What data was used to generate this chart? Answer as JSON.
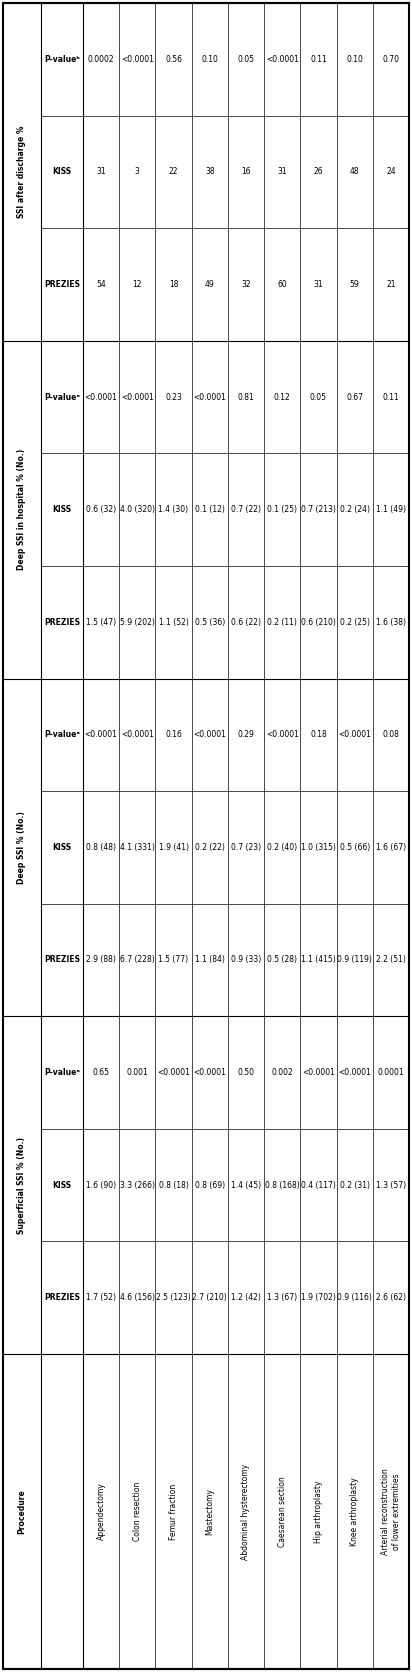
{
  "procedures": [
    "Appendectomy",
    "Colon resection",
    "Femur fraction",
    "Mastectomy",
    "Abdominal hysterectomy",
    "Caesarean section",
    "Hip arthroplasty",
    "Knee arthroplasty",
    "Arterial reconstruction\nof lower extremities"
  ],
  "col_groups": [
    "Superficial SSI % (No.)",
    "Deep SSI % (No.)",
    "Deep SSI in hospital % (No.)",
    "SSI after discharge %"
  ],
  "data": [
    [
      "1.7 (52)",
      "1.6 (90)",
      "0.65",
      "2.9 (88)",
      "0.8 (48)",
      "<0.0001",
      "1.5 (47)",
      "0.6 (32)",
      "<0.0001",
      "54",
      "31",
      "0.0002"
    ],
    [
      "4.6 (156)",
      "3.3 (266)",
      "0.001",
      "6.7 (228)",
      "4.1 (331)",
      "<0.0001",
      "5.9 (202)",
      "4.0 (320)",
      "<0.0001",
      "12",
      "3",
      "<0.0001"
    ],
    [
      "2.5 (123)",
      "0.8 (18)",
      "<0.0001",
      "1.5 (77)",
      "1.9 (41)",
      "0.16",
      "1.1 (52)",
      "1.4 (30)",
      "0.23",
      "18",
      "22",
      "0.56"
    ],
    [
      "2.7 (210)",
      "0.8 (69)",
      "<0.0001",
      "1.1 (84)",
      "0.2 (22)",
      "<0.0001",
      "0.5 (36)",
      "0.1 (12)",
      "<0.0001",
      "49",
      "38",
      "0.10"
    ],
    [
      "1.2 (42)",
      "1.4 (45)",
      "0.50",
      "0.9 (33)",
      "0.7 (23)",
      "0.29",
      "0.6 (22)",
      "0.7 (22)",
      "0.81",
      "32",
      "16",
      "0.05"
    ],
    [
      "1.3 (67)",
      "0.8 (168)",
      "0.002",
      "0.5 (28)",
      "0.2 (40)",
      "<0.0001",
      "0.2 (11)",
      "0.1 (25)",
      "0.12",
      "60",
      "31",
      "<0.0001"
    ],
    [
      "1.9 (702)",
      "0.4 (117)",
      "<0.0001",
      "1.1 (415)",
      "1.0 (315)",
      "0.18",
      "0.6 (210)",
      "0.7 (213)",
      "0.05",
      "31",
      "26",
      "0.11"
    ],
    [
      "0.9 (116)",
      "0.2 (31)",
      "<0.0001",
      "0.9 (119)",
      "0.5 (66)",
      "<0.0001",
      "0.2 (25)",
      "0.2 (24)",
      "0.67",
      "59",
      "48",
      "0.10"
    ],
    [
      "2.6 (62)",
      "1.3 (57)",
      "0.0001",
      "2.2 (51)",
      "1.6 (67)",
      "0.08",
      "1.6 (38)",
      "1.1 (49)",
      "0.11",
      "21",
      "24",
      "0.70"
    ]
  ]
}
